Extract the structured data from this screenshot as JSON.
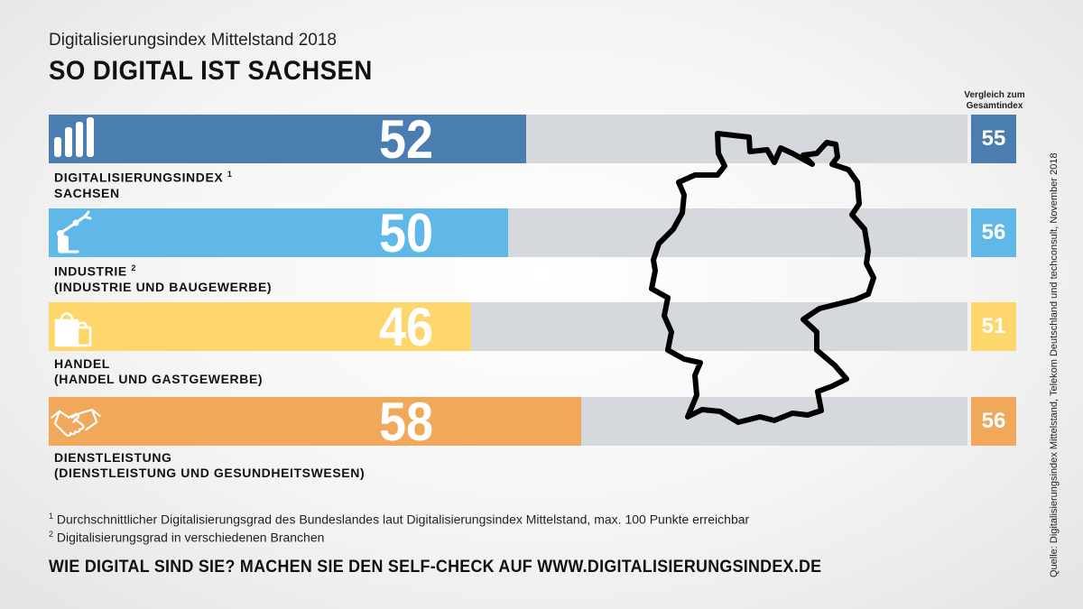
{
  "header": {
    "subtitle": "Digitalisierungsindex Mittelstand 2018",
    "title": "SO DIGITAL IST SACHSEN",
    "compare_line1": "Vergleich zum",
    "compare_line2": "Gesamtindex"
  },
  "chart_data": {
    "type": "bar",
    "orientation": "horizontal",
    "xlim": [
      0,
      100
    ],
    "categories": [
      {
        "label_line1": "DIGITALISIERUNGSINDEX",
        "sup": "1",
        "label_line2": "SACHSEN",
        "icon": "bar-chart-icon"
      },
      {
        "label_line1": "INDUSTRIE",
        "sup": "2",
        "label_line2": "(INDUSTRIE UND BAUGEWERBE)",
        "icon": "robot-arm-icon"
      },
      {
        "label_line1": "HANDEL",
        "sup": "",
        "label_line2": "(HANDEL UND GASTGEWERBE)",
        "icon": "shopping-bags-icon"
      },
      {
        "label_line1": "DIENSTLEISTUNG",
        "sup": "",
        "label_line2": "(DIENSTLEISTUNG UND GESUNDHEITSWESEN)",
        "icon": "handshake-icon"
      }
    ],
    "values": [
      52,
      50,
      46,
      58
    ],
    "comparison_values": [
      55,
      56,
      51,
      56
    ],
    "colors": [
      "#4a7db0",
      "#5fb8e8",
      "#fdd76c",
      "#f0a85a"
    ],
    "value_text": [
      "52",
      "50",
      "46",
      "58"
    ],
    "comparison_text": [
      "55",
      "56",
      "51",
      "56"
    ]
  },
  "footnotes": [
    {
      "sup": "1",
      "text": "Durchschnittlicher Digitalisierungsgrad des Bundeslandes laut Digitalisierungsindex Mittelstand, max. 100 Punkte erreichbar"
    },
    {
      "sup": "2",
      "text": "Digitalisierungsgrad in verschiedenen Branchen"
    }
  ],
  "cta": "WIE DIGITAL SIND SIE? MACHEN SIE DEN SELF-CHECK AUF WWW.DIGITALISIERUNGSINDEX.DE",
  "source": "Quelle: Digitalisierungsindex Mittelstand, Telekom Deutschland und techconsult, November 2018",
  "map": {
    "icon": "germany-outline-icon",
    "stroke": "#000000"
  }
}
